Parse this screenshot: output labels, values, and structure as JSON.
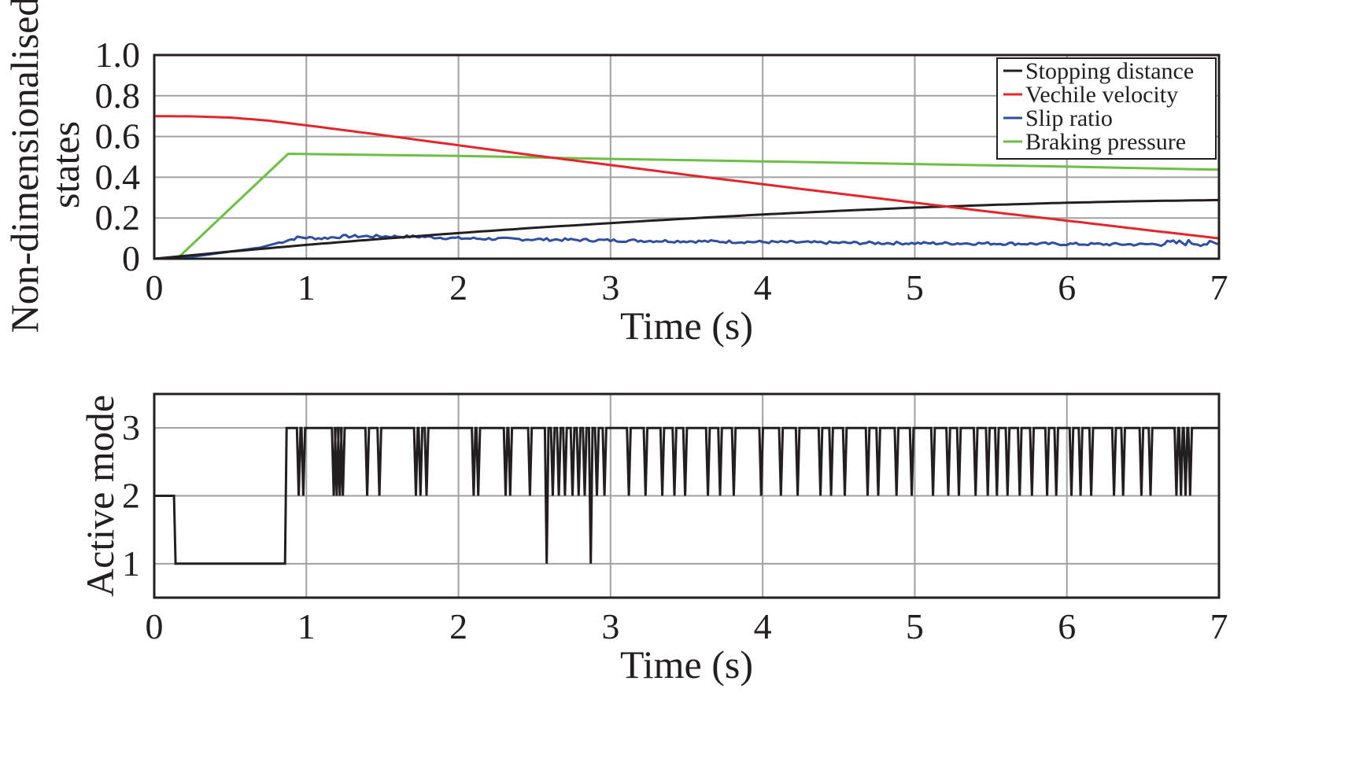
{
  "chart_data": [
    {
      "type": "line",
      "xlabel": "Time (s)",
      "ylabel": [
        "Non-dimensionalised",
        "states"
      ],
      "xlim": [
        0,
        7
      ],
      "ylim": [
        0,
        1.0
      ],
      "xticks": [
        "0",
        "1",
        "2",
        "3",
        "4",
        "5",
        "6",
        "7"
      ],
      "yticks": [
        "0",
        "0.2",
        "0.4",
        "0.6",
        "0.8",
        "1.0"
      ],
      "grid": true,
      "legend_position": "top-right",
      "series": [
        {
          "name": "Stopping distance",
          "color": "#231f20",
          "x": [
            0,
            0.5,
            1,
            1.5,
            2,
            2.5,
            3,
            3.5,
            4,
            4.5,
            5,
            5.5,
            6,
            6.5,
            7
          ],
          "y": [
            0,
            0.035,
            0.068,
            0.098,
            0.126,
            0.152,
            0.175,
            0.197,
            0.217,
            0.235,
            0.251,
            0.264,
            0.275,
            0.283,
            0.288
          ]
        },
        {
          "name": "Vechile velocity",
          "color": "#e3262b",
          "x": [
            0,
            0.25,
            0.5,
            0.75,
            1,
            1.5,
            2,
            2.5,
            3,
            3.5,
            4,
            4.5,
            5,
            5.5,
            6,
            6.5,
            7
          ],
          "y": [
            0.7,
            0.699,
            0.693,
            0.678,
            0.655,
            0.607,
            0.557,
            0.507,
            0.46,
            0.412,
            0.366,
            0.32,
            0.275,
            0.23,
            0.187,
            0.143,
            0.1
          ]
        },
        {
          "name": "Slip ratio",
          "color": "#2e4ea1",
          "x": [
            0,
            0.15,
            0.3,
            0.5,
            0.7,
            0.85,
            0.95,
            1.1,
            1.25,
            1.5,
            1.75,
            2,
            2.5,
            3,
            3.5,
            4,
            4.5,
            5,
            5.5,
            6,
            6.5,
            6.8,
            7
          ],
          "y": [
            0,
            0.002,
            0.015,
            0.035,
            0.055,
            0.085,
            0.105,
            0.1,
            0.11,
            0.11,
            0.108,
            0.1,
            0.095,
            0.09,
            0.086,
            0.082,
            0.078,
            0.076,
            0.075,
            0.072,
            0.07,
            0.08,
            0.07
          ]
        },
        {
          "name": "Braking pressure",
          "color": "#6cbf44",
          "x": [
            0,
            0.15,
            0.88,
            1.2,
            2,
            3,
            4,
            5,
            6,
            7
          ],
          "y": [
            0,
            0,
            0.515,
            0.512,
            0.505,
            0.49,
            0.478,
            0.465,
            0.452,
            0.437
          ]
        }
      ]
    },
    {
      "type": "line",
      "xlabel": "Time (s)",
      "ylabel": "Active mode",
      "xlim": [
        0,
        7
      ],
      "ylim": [
        0.5,
        3.5
      ],
      "xticks": [
        "0",
        "1",
        "2",
        "3",
        "4",
        "5",
        "6",
        "7"
      ],
      "yticks": [
        "1",
        "2",
        "3"
      ],
      "grid": true,
      "series": [
        {
          "color": "#231f20",
          "base_x": [
            0,
            0.13,
            0.14,
            0.86,
            0.87,
            7
          ],
          "base_y": [
            2,
            2,
            1,
            1,
            3,
            3
          ],
          "dips_to_2": [
            0.95,
            0.98,
            1.18,
            1.2,
            1.22,
            1.24,
            1.4,
            1.48,
            1.72,
            1.75,
            1.79,
            2.1,
            2.13,
            2.31,
            2.34,
            2.47,
            2.62,
            2.66,
            2.7,
            2.75,
            2.79,
            2.83,
            2.91,
            2.96,
            3.12,
            3.23,
            3.34,
            3.42,
            3.49,
            3.64,
            3.72,
            3.81,
            3.99,
            4.12,
            4.23,
            4.38,
            4.45,
            4.54,
            4.69,
            4.76,
            4.88,
            4.98,
            5.12,
            5.22,
            5.29,
            5.4,
            5.48,
            5.54,
            5.61,
            5.69,
            5.77,
            5.87,
            5.93,
            6.03,
            6.09,
            6.16,
            6.31,
            6.37,
            6.49,
            6.55,
            6.72,
            6.75,
            6.78,
            6.81
          ],
          "dips_to_1": [
            2.58,
            2.87
          ]
        }
      ]
    }
  ]
}
